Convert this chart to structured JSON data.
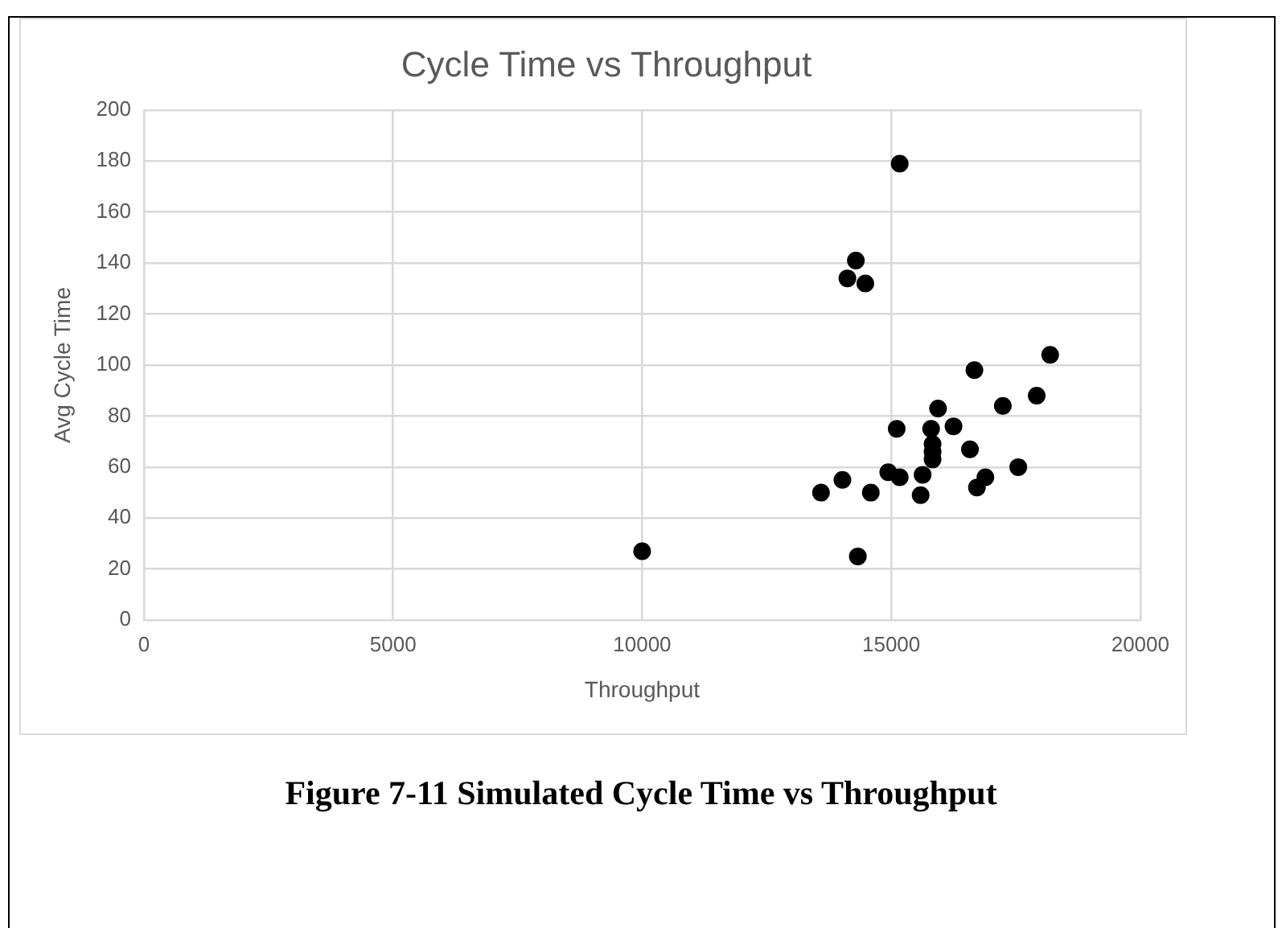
{
  "chart_data": {
    "type": "scatter",
    "title": "Cycle Time vs Throughput",
    "xlabel": "Throughput",
    "ylabel": "Avg Cycle Time",
    "annotations": [
      "Figure 7-11 Simulated Cycle Time vs Throughput"
    ],
    "series": [
      {
        "color": "#000000",
        "x": [
          10000,
          15170,
          14290,
          14120,
          14480,
          18190,
          16670,
          17920,
          17240,
          15940,
          16250,
          15110,
          15800,
          15830,
          15830,
          15830,
          16580,
          14940,
          15170,
          15630,
          17550,
          16890,
          16720,
          14020,
          13590,
          14590,
          15590,
          14330
        ],
        "values": [
          27,
          179,
          141,
          134,
          132,
          104,
          98,
          88,
          84,
          83,
          76,
          75,
          75,
          69,
          66,
          63,
          67,
          58,
          56,
          57,
          60,
          56,
          52,
          55,
          50,
          50,
          49,
          25
        ]
      }
    ],
    "xlim": [
      0,
      20000
    ],
    "xticks": [
      0,
      5000,
      10000,
      15000,
      20000
    ],
    "ylim": [
      0,
      200
    ],
    "yticks": [
      0,
      20,
      40,
      60,
      80,
      100,
      120,
      140,
      160,
      180,
      200
    ],
    "grid": true,
    "legend": false,
    "marker": "circle"
  }
}
